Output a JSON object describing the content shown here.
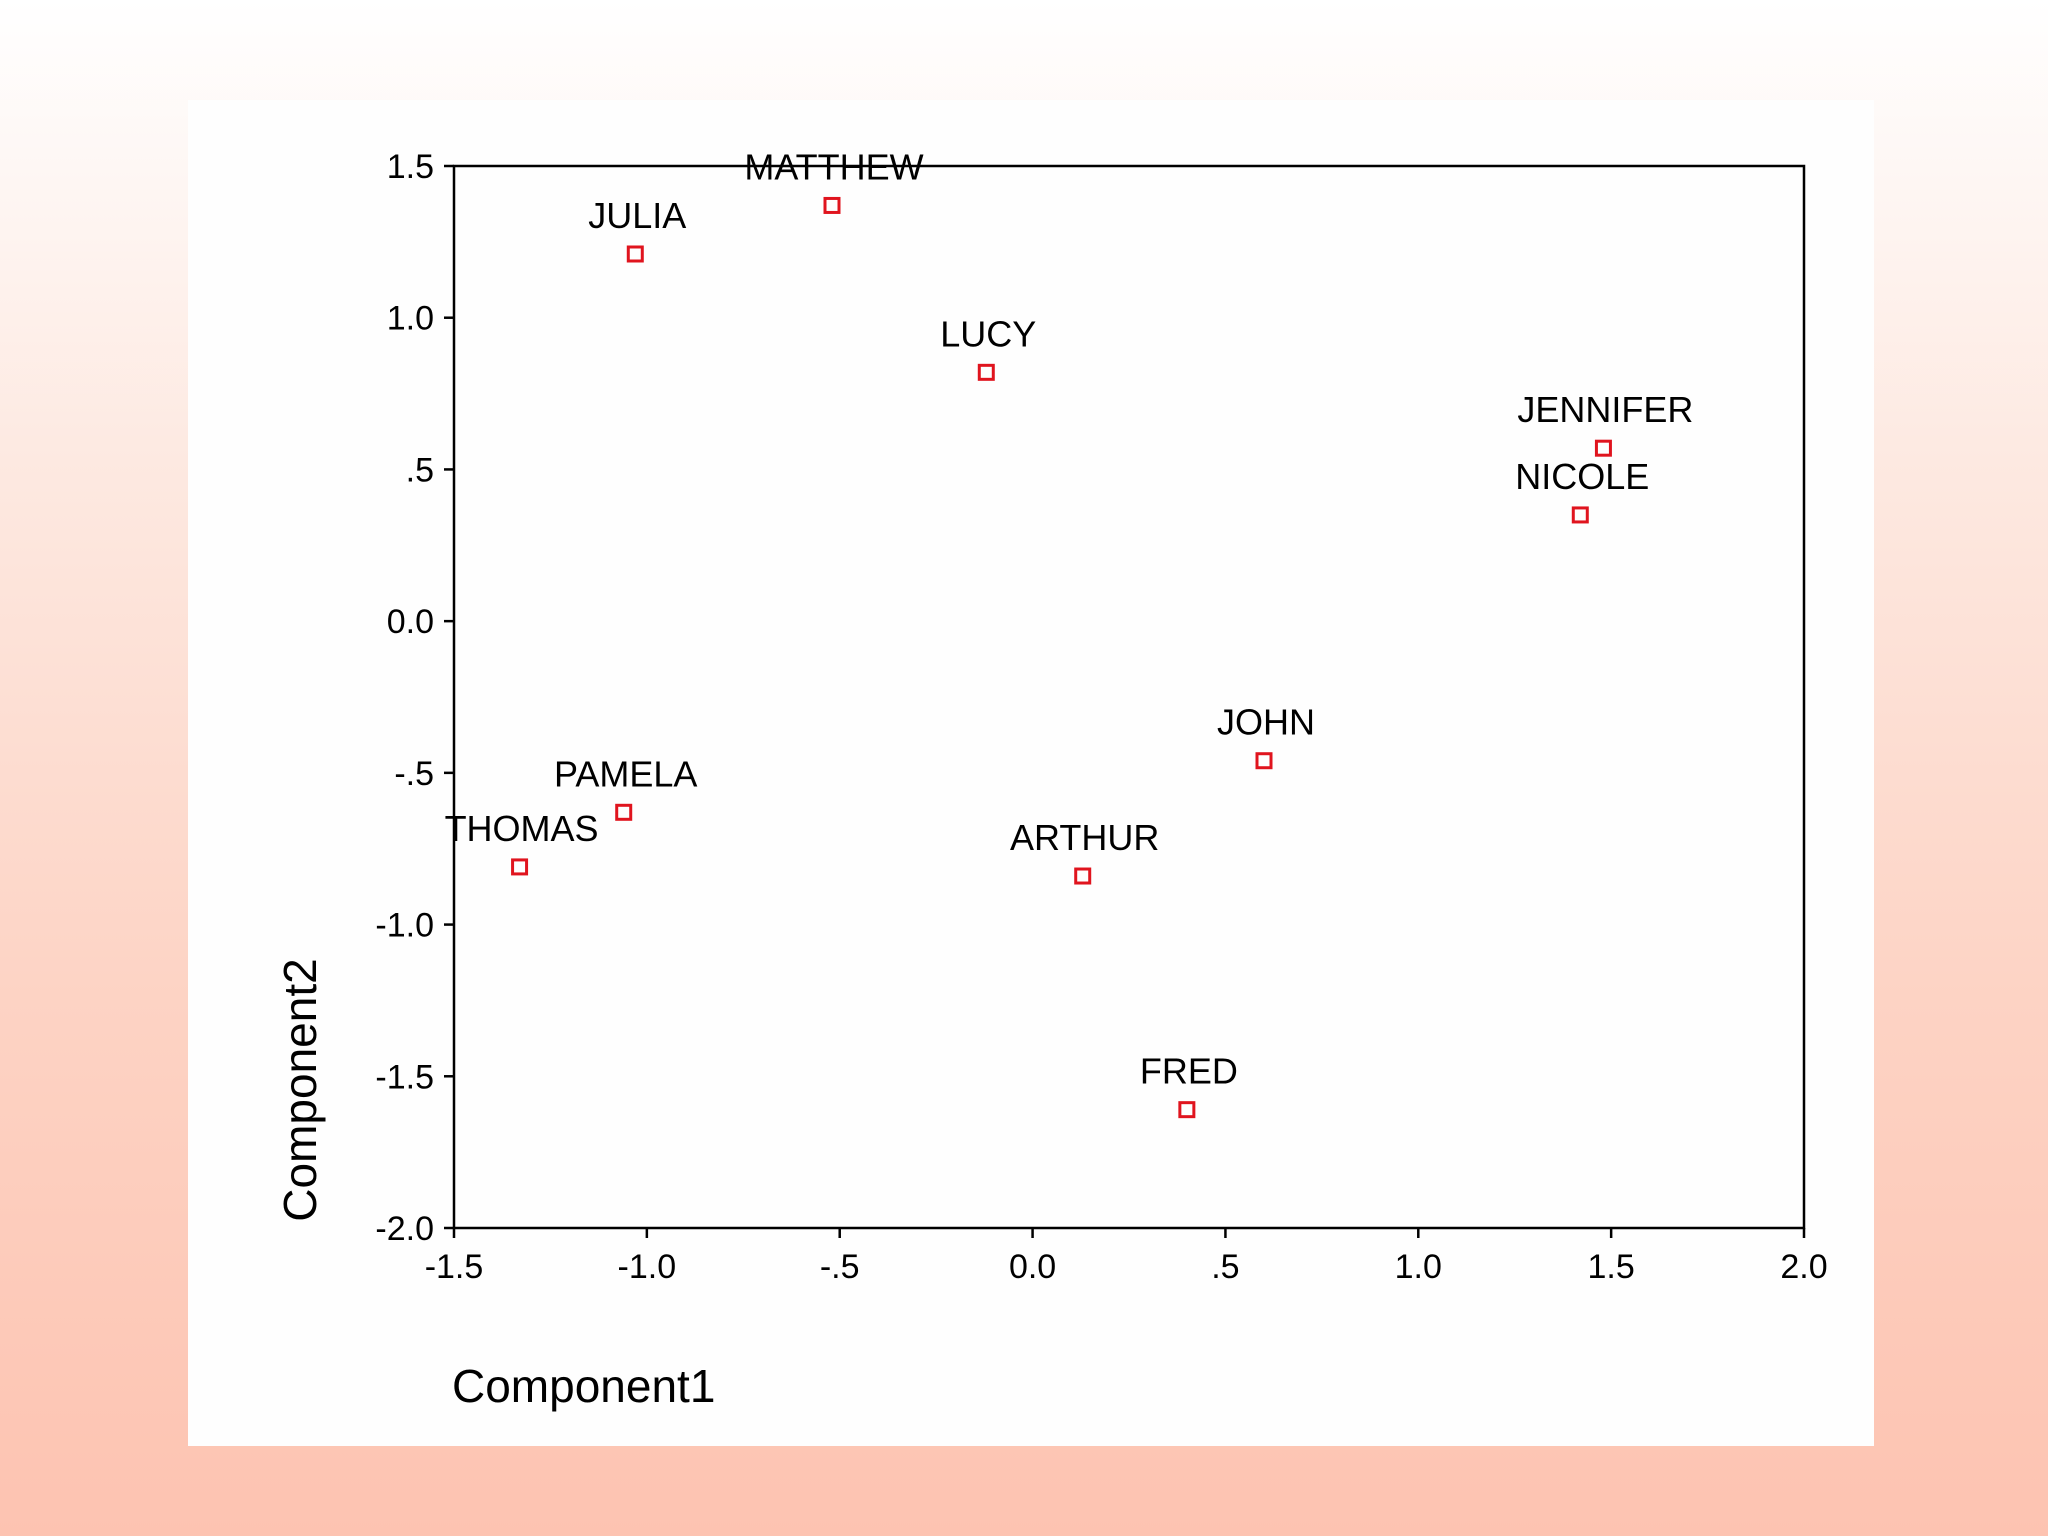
{
  "chart_data": {
    "type": "scatter",
    "title": "",
    "xlabel": "Component1",
    "ylabel": "Component2",
    "xlim": [
      -1.5,
      2.0
    ],
    "ylim": [
      -2.0,
      1.5
    ],
    "x_ticks": [
      -1.5,
      -1.0,
      -0.5,
      0.0,
      0.5,
      1.0,
      1.5,
      2.0
    ],
    "x_tick_labels": [
      "-1.5",
      "-1.0",
      "-.5",
      "0.0",
      ".5",
      "1.0",
      "1.5",
      "2.0"
    ],
    "y_ticks": [
      1.5,
      1.0,
      0.5,
      0.0,
      -0.5,
      -1.0,
      -1.5,
      -2.0
    ],
    "y_tick_labels": [
      "1.5",
      "1.0",
      ".5",
      "0.0",
      "-.5",
      "-1.0",
      "-1.5",
      "-2.0"
    ],
    "grid": false,
    "legend": "none",
    "marker_color": "#e0141e",
    "points": [
      {
        "label": "MATTHEW",
        "x": -0.52,
        "y": 1.37
      },
      {
        "label": "JULIA",
        "x": -1.03,
        "y": 1.21
      },
      {
        "label": "LUCY",
        "x": -0.12,
        "y": 0.82
      },
      {
        "label": "JENNIFER",
        "x": 1.48,
        "y": 0.57
      },
      {
        "label": "NICOLE",
        "x": 1.42,
        "y": 0.35
      },
      {
        "label": "JOHN",
        "x": 0.6,
        "y": -0.46
      },
      {
        "label": "PAMELA",
        "x": -1.06,
        "y": -0.63
      },
      {
        "label": "THOMAS",
        "x": -1.33,
        "y": -0.81
      },
      {
        "label": "ARTHUR",
        "x": 0.13,
        "y": -0.84
      },
      {
        "label": "FRED",
        "x": 0.4,
        "y": -1.61
      }
    ]
  }
}
